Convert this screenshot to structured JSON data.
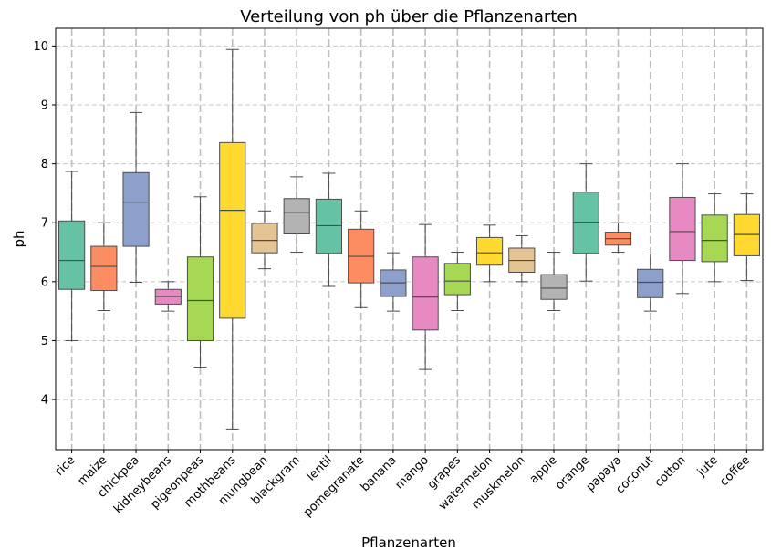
{
  "chart_data": {
    "type": "boxplot",
    "title": "Verteilung von ph über die Pflanzenarten",
    "xlabel": "Pflanzenarten",
    "ylabel": "ph",
    "ylim": [
      3.15,
      10.3
    ],
    "yticks": [
      4,
      5,
      6,
      7,
      8,
      9,
      10
    ],
    "grid": true,
    "categories": [
      "rice",
      "maize",
      "chickpea",
      "kidneybeans",
      "pigeonpeas",
      "mothbeans",
      "mungbean",
      "blackgram",
      "lentil",
      "pomegranate",
      "banana",
      "mango",
      "grapes",
      "watermelon",
      "muskmelon",
      "apple",
      "orange",
      "papaya",
      "coconut",
      "cotton",
      "jute",
      "coffee"
    ],
    "boxes": [
      {
        "min": 5.0,
        "q1": 5.87,
        "median": 6.36,
        "q3": 7.03,
        "max": 7.87
      },
      {
        "min": 5.51,
        "q1": 5.85,
        "median": 6.26,
        "q3": 6.6,
        "max": 7.0
      },
      {
        "min": 5.99,
        "q1": 6.6,
        "median": 7.35,
        "q3": 7.85,
        "max": 8.87
      },
      {
        "min": 5.5,
        "q1": 5.62,
        "median": 5.75,
        "q3": 5.87,
        "max": 6.0
      },
      {
        "min": 4.55,
        "q1": 5.0,
        "median": 5.68,
        "q3": 6.42,
        "max": 7.44
      },
      {
        "min": 3.5,
        "q1": 5.38,
        "median": 7.21,
        "q3": 8.36,
        "max": 9.94
      },
      {
        "min": 6.22,
        "q1": 6.49,
        "median": 6.7,
        "q3": 6.99,
        "max": 7.2
      },
      {
        "min": 6.5,
        "q1": 6.81,
        "median": 7.17,
        "q3": 7.41,
        "max": 7.78
      },
      {
        "min": 5.92,
        "q1": 6.48,
        "median": 6.95,
        "q3": 7.4,
        "max": 7.84
      },
      {
        "min": 5.56,
        "q1": 5.98,
        "median": 6.43,
        "q3": 6.89,
        "max": 7.2
      },
      {
        "min": 5.5,
        "q1": 5.75,
        "median": 5.98,
        "q3": 6.2,
        "max": 6.49
      },
      {
        "min": 4.51,
        "q1": 5.18,
        "median": 5.74,
        "q3": 6.42,
        "max": 6.97
      },
      {
        "min": 5.51,
        "q1": 5.78,
        "median": 6.01,
        "q3": 6.31,
        "max": 6.5
      },
      {
        "min": 6.0,
        "q1": 6.28,
        "median": 6.49,
        "q3": 6.75,
        "max": 6.96
      },
      {
        "min": 6.0,
        "q1": 6.16,
        "median": 6.36,
        "q3": 6.57,
        "max": 6.78
      },
      {
        "min": 5.51,
        "q1": 5.7,
        "median": 5.89,
        "q3": 6.12,
        "max": 6.5
      },
      {
        "min": 6.01,
        "q1": 6.48,
        "median": 7.01,
        "q3": 7.52,
        "max": 8.0
      },
      {
        "min": 6.5,
        "q1": 6.62,
        "median": 6.73,
        "q3": 6.84,
        "max": 7.0
      },
      {
        "min": 5.5,
        "q1": 5.73,
        "median": 5.99,
        "q3": 6.21,
        "max": 6.47
      },
      {
        "min": 5.8,
        "q1": 6.36,
        "median": 6.85,
        "q3": 7.43,
        "max": 8.0
      },
      {
        "min": 6.0,
        "q1": 6.34,
        "median": 6.7,
        "q3": 7.13,
        "max": 7.49
      },
      {
        "min": 6.02,
        "q1": 6.44,
        "median": 6.8,
        "q3": 7.14,
        "max": 7.49
      }
    ],
    "colors": [
      "#66c2a5",
      "#fc8d62",
      "#8da0cb",
      "#e78ac3",
      "#a6d854",
      "#ffd92f",
      "#e5c494",
      "#b3b3b3"
    ]
  }
}
